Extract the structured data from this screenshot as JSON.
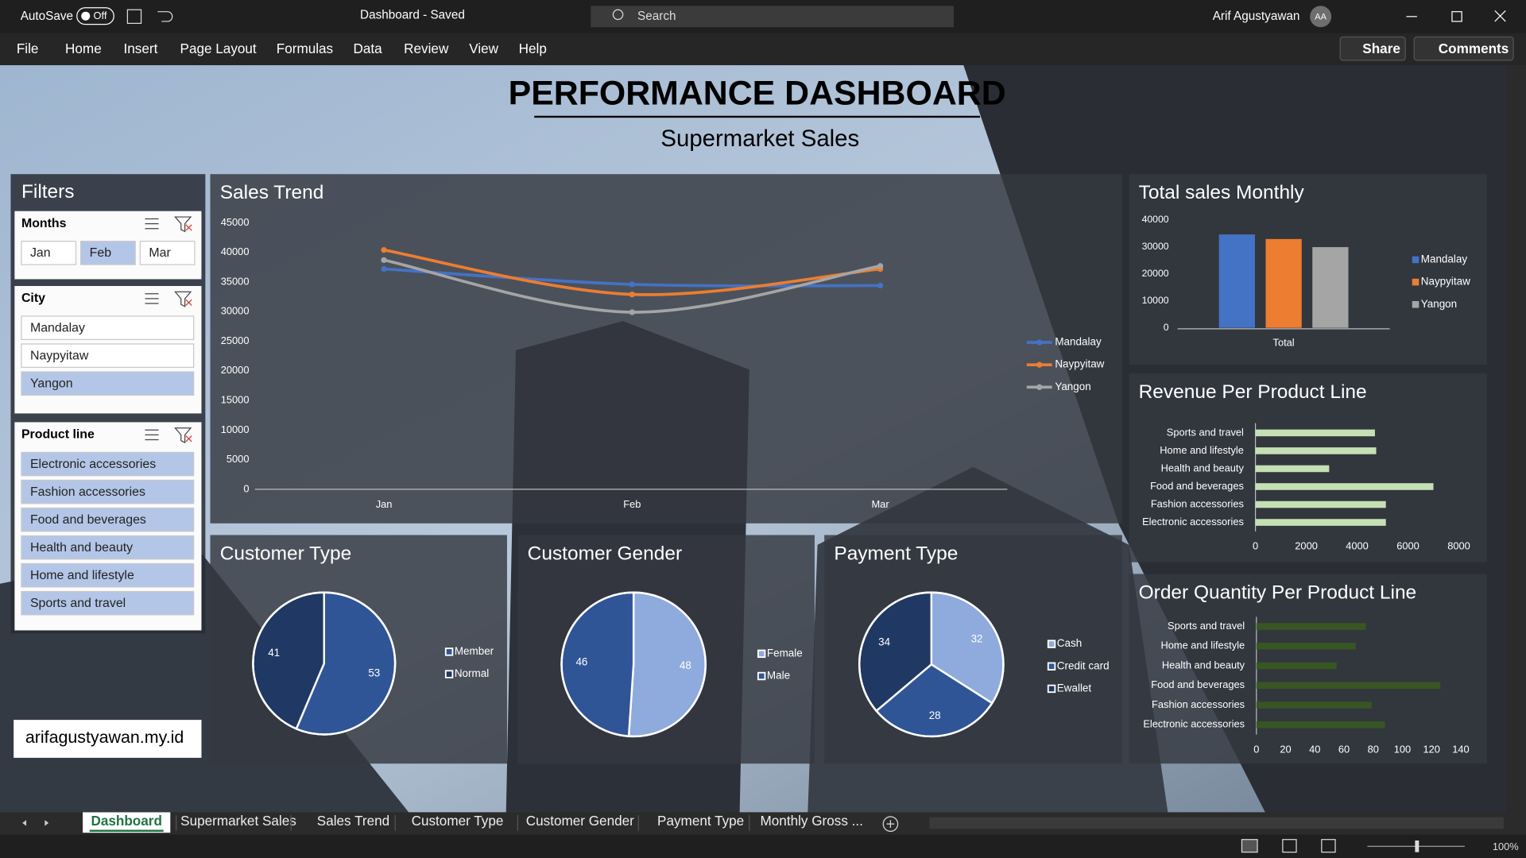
{
  "titlebar": {
    "autosave": "AutoSave",
    "autosave_state": "Off",
    "document": "Dashboard - Saved",
    "search": "Search",
    "user": "Arif Agustyawan",
    "initials": "AA"
  },
  "menu": [
    "File",
    "Home",
    "Insert",
    "Page Layout",
    "Formulas",
    "Data",
    "Review",
    "View",
    "Help"
  ],
  "share": "Share",
  "comments": "Comments",
  "dashboard": {
    "title": "PERFORMANCE DASHBOARD",
    "subtitle": "Supermarket Sales",
    "filters": {
      "title": "Filters",
      "slicers": [
        {
          "title": "Months",
          "items": [
            "Jan",
            "Feb",
            "Mar"
          ],
          "selected": [
            false,
            true,
            false
          ]
        },
        {
          "title": "City",
          "items": [
            "Mandalay",
            "Naypyitaw",
            "Yangon"
          ],
          "selected": [
            false,
            false,
            true
          ]
        },
        {
          "title": "Product line",
          "items": [
            "Electronic accessories",
            "Fashion accessories",
            "Food and beverages",
            "Health and beauty",
            "Home and lifestyle",
            "Sports and travel"
          ],
          "selected": [
            true,
            true,
            true,
            true,
            true,
            true
          ]
        }
      ]
    },
    "website": "arifagustyawan.my.id",
    "charts": [
      {
        "type": "line",
        "title": "Sales Trend",
        "categories": [
          "Jan",
          "Feb",
          "Mar"
        ],
        "series": [
          {
            "name": "Mandalay",
            "color": "#4472c4",
            "values": [
              37200,
              34600,
              34400
            ]
          },
          {
            "name": "Naypyitaw",
            "color": "#ed7d31",
            "values": [
              40400,
              32900,
              37200
            ]
          },
          {
            "name": "Yangon",
            "color": "#a5a5a5",
            "values": [
              38700,
              29900,
              37700
            ]
          }
        ],
        "ylim": [
          0,
          45000
        ],
        "yticks": [
          0,
          5000,
          10000,
          15000,
          20000,
          25000,
          30000,
          35000,
          40000,
          45000
        ],
        "grid": false,
        "legend": "right"
      },
      {
        "type": "bar",
        "title": "Total sales Monthly",
        "categories": [
          "Total"
        ],
        "series": [
          {
            "name": "Mandalay",
            "color": "#4472c4",
            "values": [
              34600
            ]
          },
          {
            "name": "Naypyitaw",
            "color": "#ed7d31",
            "values": [
              32900
            ]
          },
          {
            "name": "Yangon",
            "color": "#a5a5a5",
            "values": [
              29900
            ]
          }
        ],
        "ylim": [
          0,
          40000
        ],
        "yticks": [
          0,
          10000,
          20000,
          30000,
          40000
        ],
        "grid": false,
        "legend": "right"
      },
      {
        "type": "hbar",
        "title": "Revenue Per Product Line",
        "categories": [
          "Sports and travel",
          "Home and lifestyle",
          "Health and beauty",
          "Food and beverages",
          "Fashion accessories",
          "Electronic accessories"
        ],
        "values": [
          4700,
          4750,
          2900,
          7000,
          5130,
          5130
        ],
        "color": "#c5e0b4",
        "xlim": [
          0,
          8000
        ],
        "xticks": [
          0,
          2000,
          4000,
          6000,
          8000
        ],
        "grid": false
      },
      {
        "type": "hbar",
        "title": "Order Quantity Per Product Line",
        "categories": [
          "Sports and travel",
          "Home and lifestyle",
          "Health and beauty",
          "Food and beverages",
          "Fashion accessories",
          "Electronic accessories"
        ],
        "values": [
          75,
          68,
          55,
          126,
          79,
          88
        ],
        "color": "#375623",
        "xlim": [
          0,
          140
        ],
        "xticks": [
          0,
          20,
          40,
          60,
          80,
          100,
          120,
          140
        ],
        "grid": false
      },
      {
        "type": "pie",
        "title": "Customer Type",
        "categories": [
          "Member",
          "Normal"
        ],
        "values": [
          53,
          41
        ],
        "colors": [
          "#2f5597",
          "#203864"
        ]
      },
      {
        "type": "pie",
        "title": "Customer Gender",
        "categories": [
          "Female",
          "Male"
        ],
        "values": [
          48,
          46
        ],
        "colors": [
          "#8faadc",
          "#2f5597"
        ]
      },
      {
        "type": "pie",
        "title": "Payment Type",
        "categories": [
          "Cash",
          "Credit card",
          "Ewallet"
        ],
        "values": [
          32,
          28,
          34
        ],
        "colors": [
          "#8faadc",
          "#2f5597",
          "#203864"
        ]
      }
    ]
  },
  "sheet_tabs": [
    "Dashboard",
    "Supermarket Sales",
    "Sales Trend",
    "Customer Type",
    "Customer Gender",
    "Payment Type",
    "Monthly Gross ..."
  ],
  "active_tab": 0,
  "zoom": "100%"
}
